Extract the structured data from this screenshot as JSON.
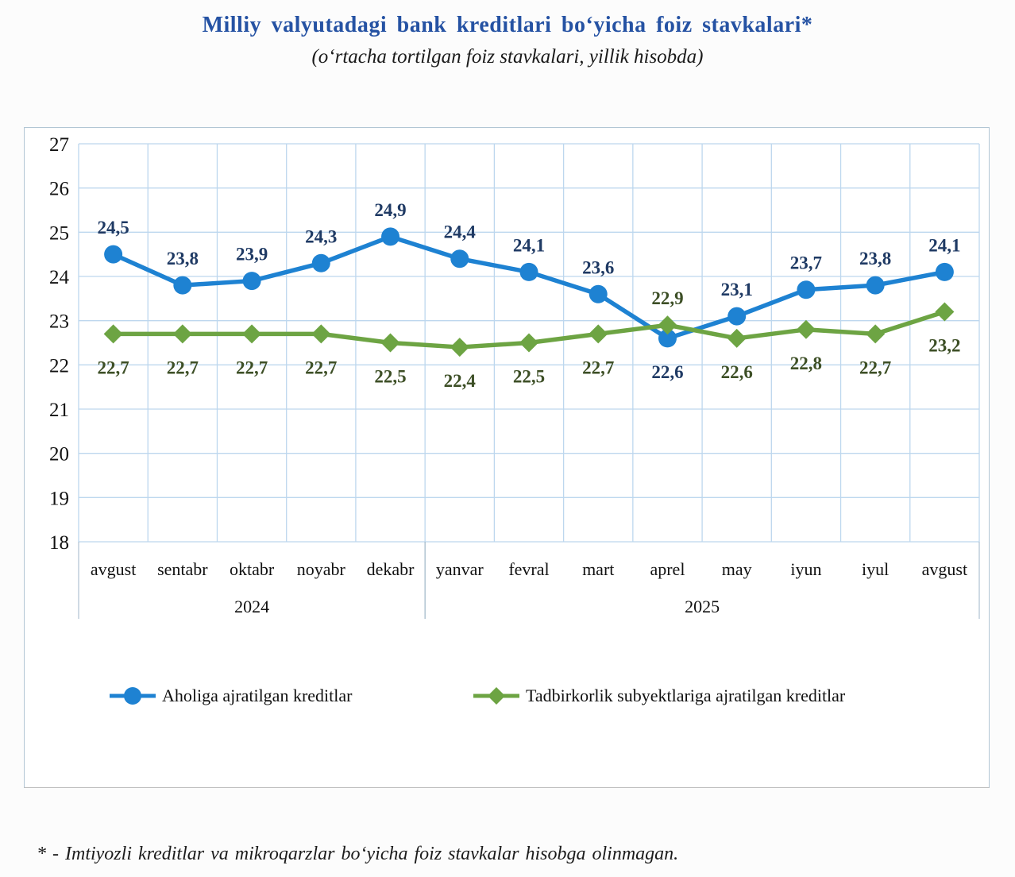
{
  "title": "Milliy valyutadagi bank kreditlari bo‘yicha foiz stavkalari*",
  "subtitle": "(o‘rtacha tortilgan foiz stavkalari, yillik hisobda)",
  "footnote": "* - Imtiyozli kreditlar va mikroqarzlar bo‘yicha foiz stavkalar hisobga olinmagan.",
  "colors": {
    "title": "#2552a3",
    "gridline": "#bdd7ee",
    "axis_text": "#111111",
    "separator": "#9fb6c8",
    "series_population": "#1e82d2",
    "series_business": "#6da443",
    "label_population": "#1f3a64",
    "label_business": "#3d4f26"
  },
  "chart_data": {
    "type": "line",
    "title": "Milliy valyutadagi bank kreditlari bo‘yicha foiz stavkalari*",
    "subtitle": "(o‘rtacha tortilgan foiz stavkalari, yillik hisobda)",
    "categories": [
      "avgust",
      "sentabr",
      "oktabr",
      "noyabr",
      "dekabr",
      "yanvar",
      "fevral",
      "mart",
      "aprel",
      "may",
      "iyun",
      "iyul",
      "avgust"
    ],
    "year_groups": [
      {
        "label": "2024",
        "from": 0,
        "to": 4
      },
      {
        "label": "2025",
        "from": 5,
        "to": 12
      }
    ],
    "series": [
      {
        "name": "Aholiga ajratilgan kreditlar",
        "marker": "circle",
        "color": "#1e82d2",
        "label_color": "#1f3a64",
        "values": [
          24.5,
          23.8,
          23.9,
          24.3,
          24.9,
          24.4,
          24.1,
          23.6,
          22.6,
          23.1,
          23.7,
          23.8,
          24.1
        ]
      },
      {
        "name": "Tadbirkorlik subyektlariga ajratilgan kreditlar",
        "marker": "diamond",
        "color": "#6da443",
        "label_color": "#3d4f26",
        "values": [
          22.7,
          22.7,
          22.7,
          22.7,
          22.5,
          22.4,
          22.5,
          22.7,
          22.9,
          22.6,
          22.8,
          22.7,
          23.2
        ]
      }
    ],
    "ylim": [
      18,
      27
    ],
    "ytick_step": 1,
    "yticks": [
      18,
      19,
      20,
      21,
      22,
      23,
      24,
      25,
      26,
      27
    ],
    "grid": true,
    "legend_position": "bottom",
    "decimal_separator": ","
  }
}
